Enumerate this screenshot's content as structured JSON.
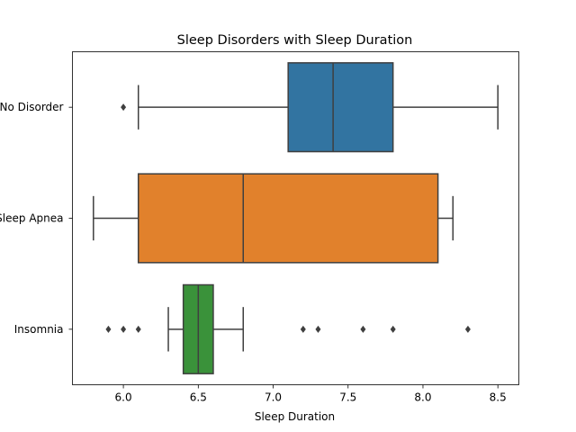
{
  "chart_data": {
    "type": "boxplot",
    "title": "Sleep Disorders with Sleep Duration",
    "xlabel": "Sleep Duration",
    "ylabel": "",
    "xlim": [
      5.66,
      8.64
    ],
    "xticks": [
      "6.0",
      "6.5",
      "7.0",
      "7.5",
      "8.0",
      "8.5"
    ],
    "orientation": "horizontal",
    "grid": false,
    "categories": [
      {
        "name": "No Disorder",
        "color": "#3274a1",
        "whisker_low": 6.1,
        "q1": 7.1,
        "median": 7.4,
        "q3": 7.8,
        "whisker_high": 8.5,
        "outliers": [
          6.0
        ]
      },
      {
        "name": "Sleep Apnea",
        "color": "#e1812c",
        "whisker_low": 5.8,
        "q1": 6.1,
        "median": 6.8,
        "q3": 8.1,
        "whisker_high": 8.2,
        "outliers": []
      },
      {
        "name": "Insomnia",
        "color": "#3a923a",
        "whisker_low": 6.3,
        "q1": 6.4,
        "median": 6.5,
        "q3": 6.6,
        "whisker_high": 6.8,
        "outliers": [
          5.9,
          6.0,
          6.1,
          7.2,
          7.3,
          7.6,
          7.8,
          8.3
        ]
      }
    ]
  }
}
